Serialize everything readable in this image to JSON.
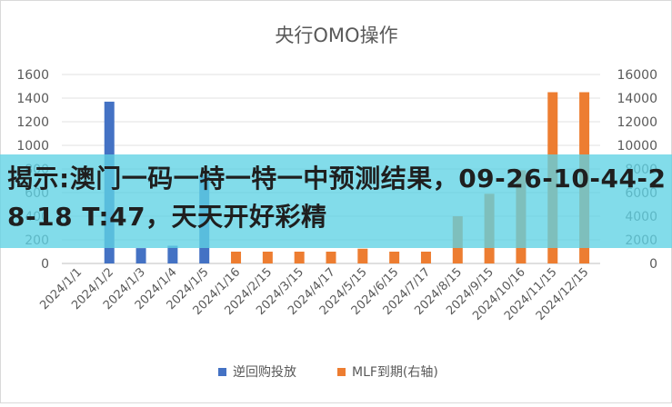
{
  "chart_data": {
    "type": "bar",
    "title": "央行OMO操作",
    "categories": [
      "2024/1/1",
      "2024/1/2",
      "2024/1/3",
      "2024/1/4",
      "2024/1/5",
      "2024/1/16",
      "2024/2/15",
      "2024/3/15",
      "2024/4/17",
      "2024/5/15",
      "2024/6/15",
      "2024/7/17",
      "2024/8/15",
      "2024/9/15",
      "2024/10/16",
      "2024/11/15",
      "2024/12/15"
    ],
    "left_axis": {
      "ylim": [
        0,
        1600
      ],
      "ticks": [
        0,
        200,
        400,
        600,
        800,
        1000,
        1200,
        1400,
        1600
      ]
    },
    "right_axis": {
      "ylim": [
        0,
        16000
      ],
      "ticks": [
        0,
        2000,
        4000,
        6000,
        8000,
        10000,
        12000,
        14000,
        16000
      ]
    },
    "series": [
      {
        "name": "逆回购投放",
        "axis": "left",
        "color": "#4472C4",
        "values": [
          null,
          1370,
          130,
          150,
          750,
          null,
          null,
          null,
          null,
          null,
          null,
          null,
          null,
          null,
          null,
          null,
          null
        ]
      },
      {
        "name": "MLF到期(右轴)",
        "axis": "right",
        "color": "#ED7D31",
        "values": [
          null,
          null,
          null,
          null,
          null,
          1000,
          1000,
          1000,
          1000,
          1250,
          1000,
          1000,
          4000,
          5900,
          7890,
          14500,
          14500
        ]
      }
    ],
    "grid": true,
    "legend_position": "bottom"
  },
  "banner": {
    "text": "揭示:澳门一码一特一特一中预测结果，09-26-10-44-28-18 T:47，天天开好彩精"
  }
}
